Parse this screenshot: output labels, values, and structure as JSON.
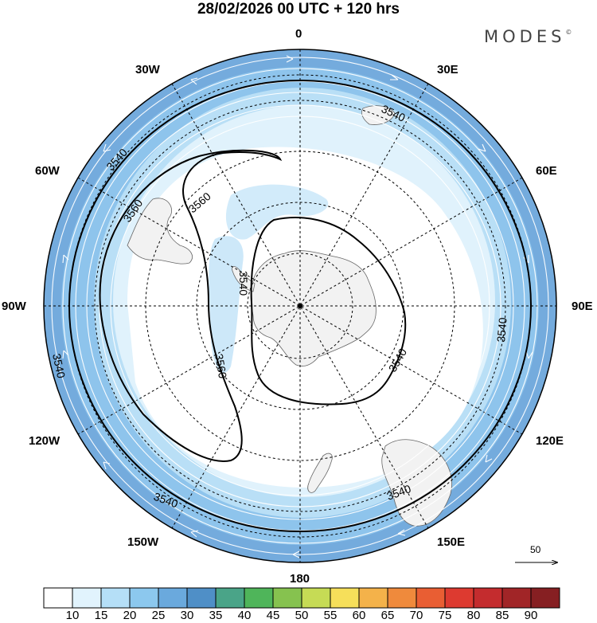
{
  "title": "28/02/2026  00 UTC  + 120 hrs",
  "brand": {
    "name": "MODES",
    "mark": "©"
  },
  "longitude_labels": {
    "north": "0",
    "e30": "30E",
    "e60": "60E",
    "e90": "90E",
    "e120": "120E",
    "e150": "150E",
    "south": "180",
    "w30": "30W",
    "w60": "60W",
    "w90": "90W",
    "w120": "120W",
    "w150": "150W"
  },
  "contours": {
    "outer": "3540",
    "inner": "3560",
    "polar": "3540"
  },
  "wind_scale": {
    "value": "50"
  },
  "colorbar": {
    "labels": [
      "10",
      "15",
      "20",
      "25",
      "30",
      "35",
      "40",
      "45",
      "50",
      "55",
      "60",
      "65",
      "70",
      "75",
      "80",
      "85",
      "90"
    ],
    "colors": [
      "#ffffff",
      "#e1f3fd",
      "#b5dff7",
      "#8cc8ee",
      "#6aa9dd",
      "#4f8fc7",
      "#4aa488",
      "#4fb55a",
      "#86c24f",
      "#c6db55",
      "#f6df5a",
      "#f4b24a",
      "#ef8a3c",
      "#e95e33",
      "#dd3a30",
      "#c42c2e",
      "#a12527",
      "#861f22"
    ]
  },
  "legend_colors": {
    "land": "#f2f2f2",
    "graticule": "#000000",
    "ocean_jet": "#7fb3e0"
  }
}
